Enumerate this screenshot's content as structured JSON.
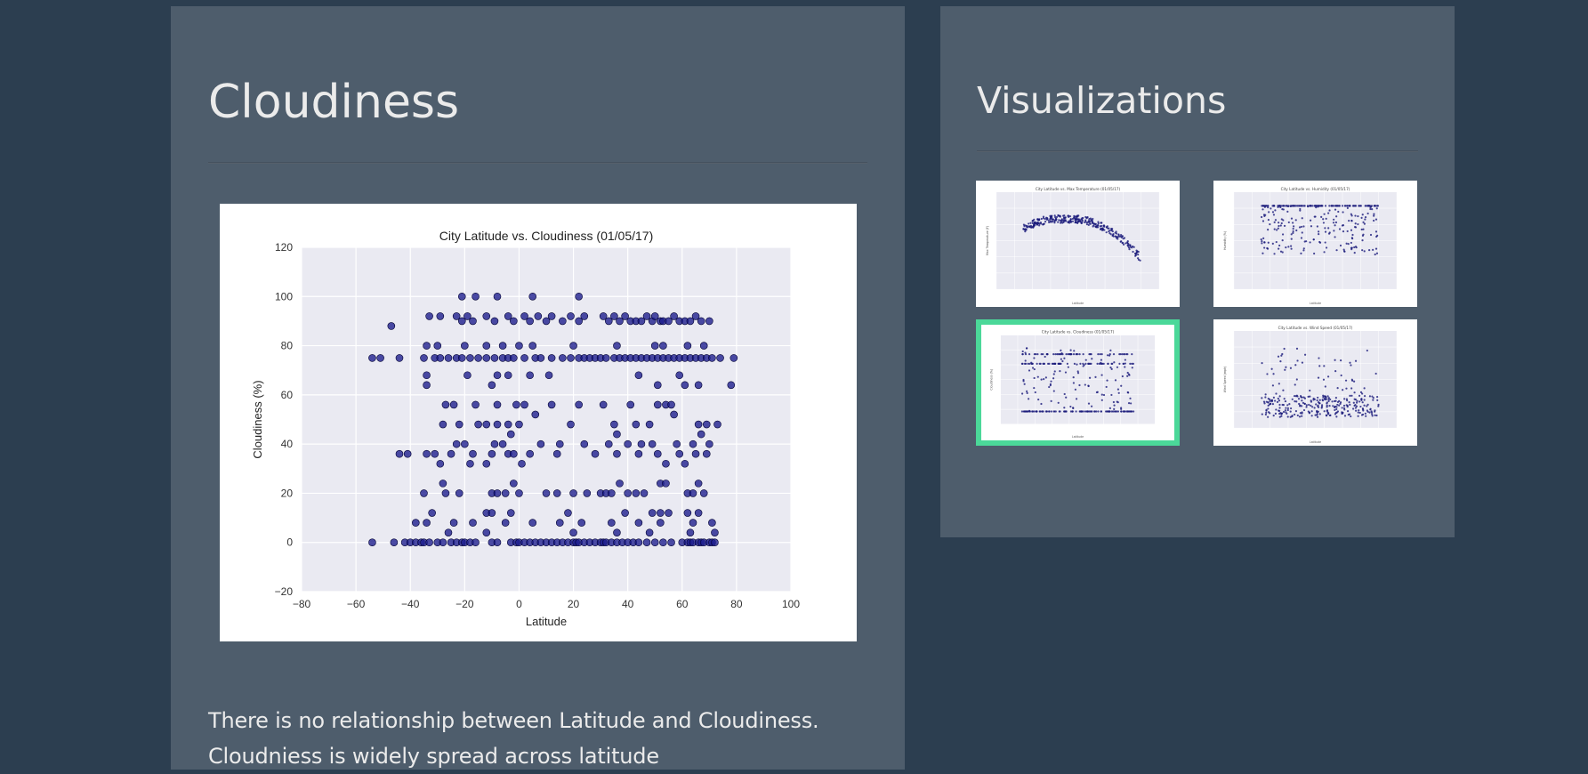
{
  "main": {
    "title": "Cloudiness",
    "description_line1": "There is no relationship between Latitude and Cloudiness.",
    "description_line2": "Cloudniess is widely spread across latitude"
  },
  "sidebar": {
    "title": "Visualizations",
    "thumbnails": [
      {
        "label": "City Latitude vs. Max Temperature (01/05/17)",
        "ylabel": "Max Temperature (F)",
        "xlabel": "Latitude",
        "active": false
      },
      {
        "label": "City Latitude vs. Humidity (01/05/17)",
        "ylabel": "Humidity (%)",
        "xlabel": "Latitude",
        "active": false
      },
      {
        "label": "City Latitude vs. Cloudiness (01/05/17)",
        "ylabel": "Cloudiness (%)",
        "xlabel": "Latitude",
        "active": true
      },
      {
        "label": "City Latitude vs. Wind Speed (01/05/17)",
        "ylabel": "Wind Speed (mph)",
        "xlabel": "Latitude",
        "active": false
      }
    ]
  },
  "colors": {
    "page_background": "#2c3e50",
    "panel_background": "#4e5d6c",
    "plot_background": "#eaeaf2",
    "point_color": "#1a1a8c",
    "active_border": "#4bd899",
    "text": "#ebebeb"
  },
  "chart_data": {
    "type": "scatter",
    "title": "City Latitude vs. Cloudiness (01/05/17)",
    "xlabel": "Latitude",
    "ylabel": "Cloudiness (%)",
    "xlim": [
      -80,
      100
    ],
    "ylim": [
      -20,
      120
    ],
    "xticks": [
      -80,
      -60,
      -40,
      -20,
      0,
      20,
      40,
      60,
      80,
      100
    ],
    "yticks": [
      -20,
      0,
      20,
      40,
      60,
      80,
      100,
      120
    ],
    "grid": true,
    "series": [
      {
        "points": [
          [
            -54,
            0
          ],
          [
            -46,
            0
          ],
          [
            -42,
            0
          ],
          [
            -40,
            0
          ],
          [
            -38,
            0
          ],
          [
            -36,
            0
          ],
          [
            -35,
            0
          ],
          [
            -33,
            0
          ],
          [
            -30,
            0
          ],
          [
            -28,
            0
          ],
          [
            -25,
            0
          ],
          [
            -23,
            0
          ],
          [
            -21,
            0
          ],
          [
            -20,
            0
          ],
          [
            -18,
            0
          ],
          [
            -16,
            0
          ],
          [
            -10,
            0
          ],
          [
            -8,
            0
          ],
          [
            -3,
            0
          ],
          [
            -1,
            0
          ],
          [
            0,
            0
          ],
          [
            2,
            0
          ],
          [
            4,
            0
          ],
          [
            6,
            0
          ],
          [
            8,
            0
          ],
          [
            10,
            0
          ],
          [
            12,
            0
          ],
          [
            14,
            0
          ],
          [
            16,
            0
          ],
          [
            18,
            0
          ],
          [
            20,
            0
          ],
          [
            21,
            0
          ],
          [
            22,
            0
          ],
          [
            24,
            0
          ],
          [
            26,
            0
          ],
          [
            28,
            0
          ],
          [
            30,
            0
          ],
          [
            31,
            0
          ],
          [
            32,
            0
          ],
          [
            34,
            0
          ],
          [
            36,
            0
          ],
          [
            38,
            0
          ],
          [
            40,
            0
          ],
          [
            42,
            0
          ],
          [
            44,
            0
          ],
          [
            47,
            0
          ],
          [
            50,
            0
          ],
          [
            53,
            0
          ],
          [
            56,
            0
          ],
          [
            60,
            0
          ],
          [
            62,
            0
          ],
          [
            63,
            0
          ],
          [
            64,
            0
          ],
          [
            66,
            0
          ],
          [
            67,
            0
          ],
          [
            68,
            0
          ],
          [
            70,
            0
          ],
          [
            71,
            0
          ],
          [
            72,
            0
          ],
          [
            -38,
            8
          ],
          [
            -34,
            8
          ],
          [
            -26,
            4
          ],
          [
            -24,
            8
          ],
          [
            -17,
            8
          ],
          [
            -12,
            4
          ],
          [
            -5,
            8
          ],
          [
            5,
            8
          ],
          [
            15,
            8
          ],
          [
            20,
            4
          ],
          [
            23,
            8
          ],
          [
            34,
            8
          ],
          [
            36,
            4
          ],
          [
            44,
            8
          ],
          [
            48,
            4
          ],
          [
            52,
            8
          ],
          [
            63,
            4
          ],
          [
            64,
            8
          ],
          [
            71,
            8
          ],
          [
            72,
            4
          ],
          [
            -32,
            12
          ],
          [
            -12,
            12
          ],
          [
            -10,
            12
          ],
          [
            -3,
            12
          ],
          [
            18,
            12
          ],
          [
            39,
            12
          ],
          [
            49,
            12
          ],
          [
            52,
            12
          ],
          [
            55,
            12
          ],
          [
            62,
            12
          ],
          [
            66,
            12
          ],
          [
            -44,
            36
          ],
          [
            -41,
            36
          ],
          [
            -31,
            36
          ],
          [
            -17,
            36
          ],
          [
            -10,
            36
          ],
          [
            -4,
            36
          ],
          [
            -2,
            36
          ],
          [
            4,
            36
          ],
          [
            14,
            36
          ],
          [
            28,
            36
          ],
          [
            36,
            36
          ],
          [
            44,
            36
          ],
          [
            51,
            36
          ],
          [
            59,
            36
          ],
          [
            65,
            36
          ],
          [
            69,
            36
          ],
          [
            -34,
            36
          ],
          [
            -29,
            32
          ],
          [
            -25,
            36
          ],
          [
            -23,
            40
          ],
          [
            -20,
            40
          ],
          [
            -18,
            32
          ],
          [
            -12,
            32
          ],
          [
            -9,
            40
          ],
          [
            -6,
            40
          ],
          [
            -3,
            44
          ],
          [
            1,
            32
          ],
          [
            8,
            40
          ],
          [
            15,
            40
          ],
          [
            24,
            40
          ],
          [
            33,
            40
          ],
          [
            36,
            44
          ],
          [
            40,
            40
          ],
          [
            45,
            40
          ],
          [
            49,
            40
          ],
          [
            54,
            32
          ],
          [
            58,
            40
          ],
          [
            61,
            32
          ],
          [
            64,
            40
          ],
          [
            67,
            44
          ],
          [
            70,
            40
          ],
          [
            73,
            48
          ],
          [
            -35,
            20
          ],
          [
            -28,
            24
          ],
          [
            -27,
            20
          ],
          [
            -22,
            20
          ],
          [
            -10,
            20
          ],
          [
            -8,
            20
          ],
          [
            -5,
            20
          ],
          [
            -2,
            24
          ],
          [
            0,
            20
          ],
          [
            10,
            20
          ],
          [
            14,
            20
          ],
          [
            20,
            20
          ],
          [
            25,
            20
          ],
          [
            30,
            20
          ],
          [
            32,
            20
          ],
          [
            34,
            20
          ],
          [
            37,
            24
          ],
          [
            40,
            20
          ],
          [
            43,
            20
          ],
          [
            46,
            20
          ],
          [
            52,
            24
          ],
          [
            54,
            24
          ],
          [
            62,
            20
          ],
          [
            64,
            20
          ],
          [
            66,
            24
          ],
          [
            68,
            20
          ],
          [
            -28,
            48
          ],
          [
            -22,
            48
          ],
          [
            -15,
            48
          ],
          [
            -12,
            48
          ],
          [
            -8,
            48
          ],
          [
            -4,
            48
          ],
          [
            0,
            48
          ],
          [
            6,
            52
          ],
          [
            19,
            48
          ],
          [
            35,
            48
          ],
          [
            43,
            48
          ],
          [
            48,
            48
          ],
          [
            57,
            52
          ],
          [
            66,
            48
          ],
          [
            69,
            48
          ],
          [
            -27,
            56
          ],
          [
            -24,
            56
          ],
          [
            -16,
            56
          ],
          [
            -8,
            56
          ],
          [
            -1,
            56
          ],
          [
            2,
            56
          ],
          [
            12,
            56
          ],
          [
            22,
            56
          ],
          [
            31,
            56
          ],
          [
            41,
            56
          ],
          [
            51,
            56
          ],
          [
            54,
            56
          ],
          [
            56,
            56
          ],
          [
            -34,
            68
          ],
          [
            -34,
            64
          ],
          [
            -19,
            68
          ],
          [
            -10,
            64
          ],
          [
            -8,
            68
          ],
          [
            -4,
            68
          ],
          [
            4,
            68
          ],
          [
            11,
            68
          ],
          [
            44,
            68
          ],
          [
            51,
            64
          ],
          [
            59,
            68
          ],
          [
            61,
            64
          ],
          [
            66,
            64
          ],
          [
            78,
            64
          ],
          [
            -54,
            75
          ],
          [
            -51,
            75
          ],
          [
            -44,
            75
          ],
          [
            -35,
            75
          ],
          [
            -31,
            75
          ],
          [
            -29,
            75
          ],
          [
            -26,
            75
          ],
          [
            -23,
            75
          ],
          [
            -21,
            75
          ],
          [
            -18,
            75
          ],
          [
            -15,
            75
          ],
          [
            -12,
            75
          ],
          [
            -9,
            75
          ],
          [
            -6,
            75
          ],
          [
            -4,
            75
          ],
          [
            -2,
            75
          ],
          [
            2,
            75
          ],
          [
            6,
            75
          ],
          [
            8,
            75
          ],
          [
            12,
            75
          ],
          [
            16,
            75
          ],
          [
            19,
            75
          ],
          [
            22,
            75
          ],
          [
            24,
            75
          ],
          [
            26,
            75
          ],
          [
            28,
            75
          ],
          [
            30,
            75
          ],
          [
            32,
            75
          ],
          [
            35,
            75
          ],
          [
            37,
            75
          ],
          [
            39,
            75
          ],
          [
            41,
            75
          ],
          [
            43,
            75
          ],
          [
            45,
            75
          ],
          [
            47,
            75
          ],
          [
            49,
            75
          ],
          [
            51,
            75
          ],
          [
            53,
            75
          ],
          [
            55,
            75
          ],
          [
            57,
            75
          ],
          [
            59,
            75
          ],
          [
            61,
            75
          ],
          [
            63,
            75
          ],
          [
            65,
            75
          ],
          [
            67,
            75
          ],
          [
            69,
            75
          ],
          [
            71,
            75
          ],
          [
            74,
            75
          ],
          [
            79,
            75
          ],
          [
            -34,
            80
          ],
          [
            -30,
            80
          ],
          [
            -20,
            80
          ],
          [
            -12,
            80
          ],
          [
            -6,
            80
          ],
          [
            0,
            80
          ],
          [
            5,
            80
          ],
          [
            20,
            80
          ],
          [
            36,
            80
          ],
          [
            50,
            80
          ],
          [
            53,
            80
          ],
          [
            62,
            80
          ],
          [
            68,
            80
          ],
          [
            -47,
            88
          ],
          [
            -33,
            92
          ],
          [
            -29,
            92
          ],
          [
            -23,
            92
          ],
          [
            -21,
            90
          ],
          [
            -19,
            92
          ],
          [
            -17,
            90
          ],
          [
            -12,
            92
          ],
          [
            -9,
            90
          ],
          [
            -4,
            92
          ],
          [
            -2,
            90
          ],
          [
            2,
            92
          ],
          [
            4,
            90
          ],
          [
            7,
            92
          ],
          [
            10,
            90
          ],
          [
            12,
            92
          ],
          [
            16,
            90
          ],
          [
            19,
            92
          ],
          [
            22,
            90
          ],
          [
            24,
            92
          ],
          [
            31,
            92
          ],
          [
            33,
            90
          ],
          [
            35,
            92
          ],
          [
            37,
            90
          ],
          [
            39,
            92
          ],
          [
            41,
            90
          ],
          [
            43,
            90
          ],
          [
            45,
            90
          ],
          [
            47,
            92
          ],
          [
            49,
            90
          ],
          [
            50,
            92
          ],
          [
            52,
            90
          ],
          [
            53,
            90
          ],
          [
            55,
            90
          ],
          [
            57,
            92
          ],
          [
            59,
            90
          ],
          [
            61,
            90
          ],
          [
            63,
            90
          ],
          [
            65,
            92
          ],
          [
            67,
            90
          ],
          [
            70,
            90
          ],
          [
            -21,
            100
          ],
          [
            -16,
            100
          ],
          [
            -8,
            100
          ],
          [
            5,
            100
          ],
          [
            22,
            100
          ]
        ]
      }
    ]
  }
}
